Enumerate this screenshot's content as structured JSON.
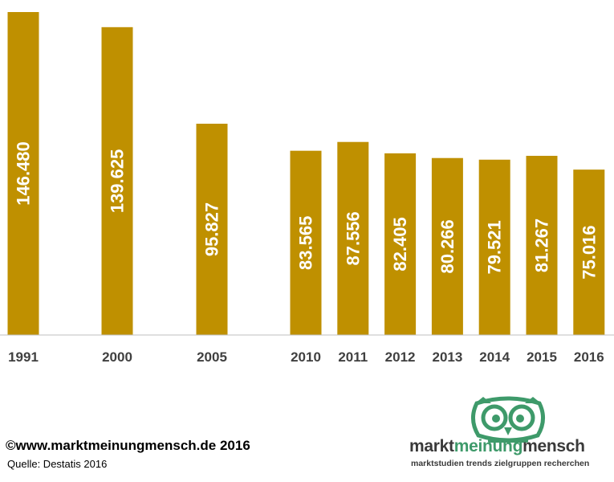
{
  "chart_data": {
    "type": "bar",
    "categories": [
      "1991",
      "2000",
      "2005",
      "2010",
      "2011",
      "2012",
      "2013",
      "2014",
      "2015",
      "2016"
    ],
    "values": [
      146480,
      139625,
      95827,
      83565,
      87556,
      82405,
      80266,
      79521,
      81267,
      75016
    ],
    "data_labels": [
      "146.480",
      "139.625",
      "95.827",
      "83.565",
      "87.556",
      "82.405",
      "80.266",
      "79.521",
      "81.267",
      "75.016"
    ],
    "x_position_years": [
      1991,
      2000,
      2005,
      2010,
      2011,
      2012,
      2013,
      2014,
      2015,
      2016
    ],
    "ylim": [
      0,
      146480
    ],
    "grid": false,
    "bar_color": "#bf9000",
    "label_color": "#ffffff"
  },
  "footer": {
    "copyright": "©www.marktmeinungmensch.de 2016",
    "source": "Quelle: Destatis 2016"
  },
  "logo": {
    "word1": "markt",
    "word2": "meinung",
    "word3": "mensch",
    "tagline": "marktstudien trends zielgruppen recherchen",
    "green": "#3e9a6a",
    "dark": "#3a3a3a",
    "icon": "owl-icon"
  }
}
